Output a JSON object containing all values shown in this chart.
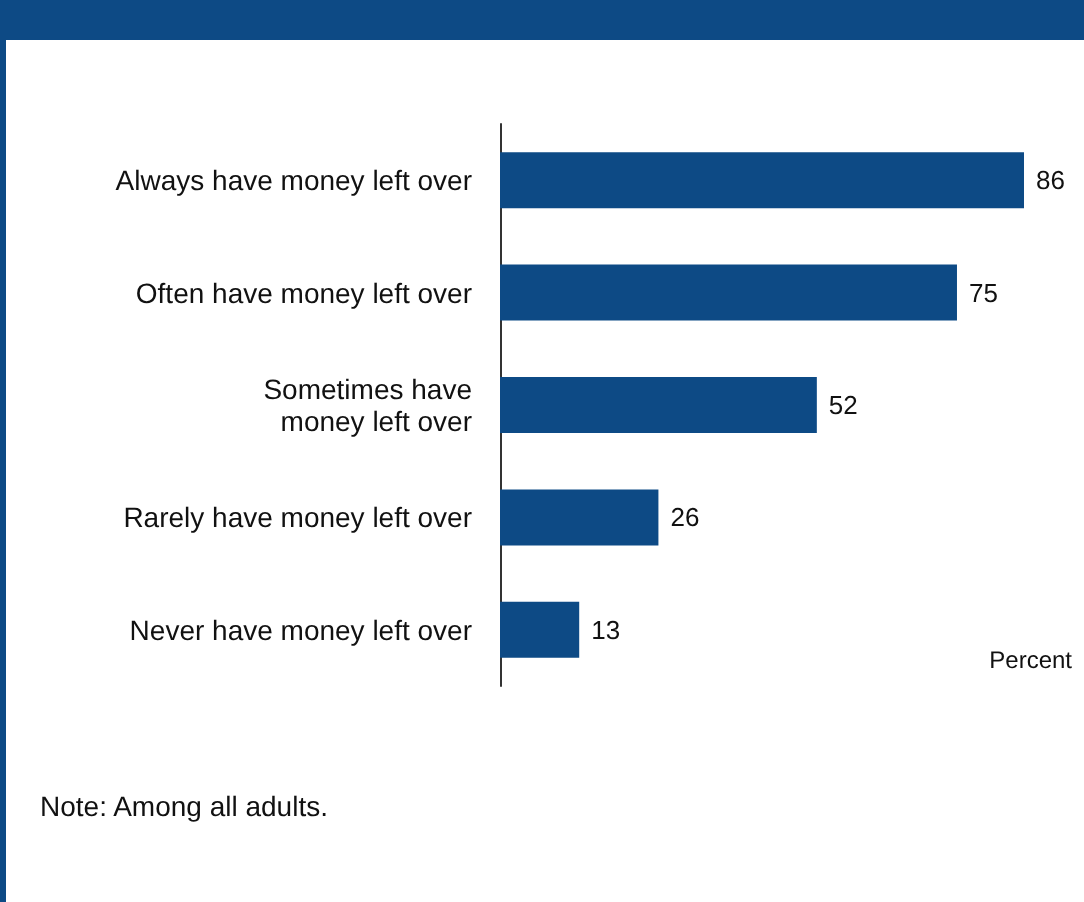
{
  "chart_data": {
    "type": "bar",
    "orientation": "horizontal",
    "categories": [
      "Always have money left over",
      "Often have money left over",
      "Sometimes have\nmoney left over",
      "Rarely have money left over",
      "Never have money left over"
    ],
    "values": [
      86,
      75,
      52,
      26,
      13
    ],
    "color": "#0d4a85",
    "data_labels": true,
    "xlabel": "Percent",
    "annotations": [
      "Note: Among all adults."
    ]
  }
}
